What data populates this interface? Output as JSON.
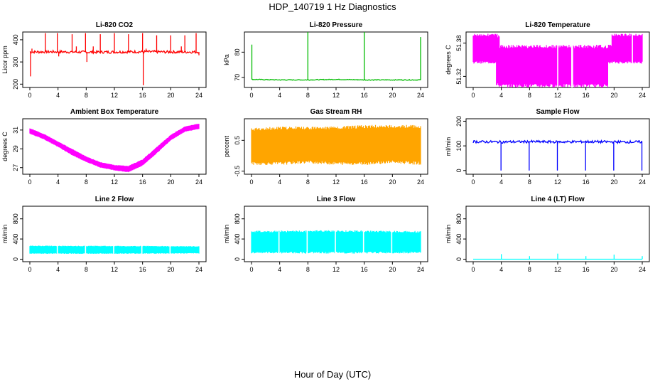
{
  "figure": {
    "title": "HDP_140719  1 Hz Diagnostics",
    "xlabel": "Hour of Day (UTC)"
  },
  "chart_data": [
    {
      "type": "line",
      "title": "Li-820 CO2",
      "ylabel": "Licor ppm",
      "color": "#ff0000",
      "xlim": [
        0,
        24
      ],
      "ylim": [
        185,
        435
      ],
      "xticks": [
        "0",
        "4",
        "8",
        "12",
        "16",
        "20",
        "24"
      ],
      "yticks": [
        200,
        300,
        400
      ],
      "baseline": [
        [
          0,
          345
        ],
        [
          4,
          346
        ],
        [
          8,
          344
        ],
        [
          12,
          345
        ],
        [
          16,
          346
        ],
        [
          20,
          345
        ],
        [
          24,
          345
        ]
      ],
      "noise": 6,
      "spikes": [
        [
          0.1,
          235
        ],
        [
          0.3,
          360
        ],
        [
          2.2,
          430
        ],
        [
          3.9,
          430
        ],
        [
          4.1,
          325
        ],
        [
          6.0,
          425
        ],
        [
          6.6,
          370
        ],
        [
          7.9,
          430
        ],
        [
          8.1,
          300
        ],
        [
          9.0,
          370
        ],
        [
          10.0,
          425
        ],
        [
          12.0,
          430
        ],
        [
          14.0,
          425
        ],
        [
          16.0,
          430
        ],
        [
          16.1,
          195
        ],
        [
          16.5,
          360
        ],
        [
          18.0,
          420
        ],
        [
          20.0,
          420
        ],
        [
          21.5,
          370
        ],
        [
          22.0,
          420
        ],
        [
          23.6,
          430
        ],
        [
          24.0,
          330
        ]
      ]
    },
    {
      "type": "line",
      "title": "Li-820 Pressure",
      "ylabel": "kPa",
      "color": "#00bb00",
      "xlim": [
        0,
        24
      ],
      "ylim": [
        66,
        88
      ],
      "xticks": [
        "0",
        "4",
        "8",
        "12",
        "16",
        "20",
        "24"
      ],
      "yticks": [
        70,
        80
      ],
      "baseline": [
        [
          0,
          69.2
        ],
        [
          4,
          69.0
        ],
        [
          8,
          69.0
        ],
        [
          12,
          69.2
        ],
        [
          16,
          69.0
        ],
        [
          20,
          69.0
        ],
        [
          24,
          69.0
        ]
      ],
      "noise": 0.15,
      "spikes": [
        [
          0.05,
          83
        ],
        [
          8.0,
          88
        ],
        [
          16.0,
          88
        ],
        [
          24.0,
          86
        ]
      ]
    },
    {
      "type": "band",
      "title": "Li-820 Temperature",
      "ylabel": "degrees C",
      "color": "#ff00ff",
      "xlim": [
        0,
        24
      ],
      "ylim": [
        51.3,
        51.4
      ],
      "xticks": [
        "0",
        "4",
        "8",
        "12",
        "16",
        "20",
        "24"
      ],
      "yticks": [
        51.32,
        51.38
      ],
      "upper": [
        [
          0,
          51.397
        ],
        [
          3.7,
          51.397
        ],
        [
          3.8,
          51.377
        ],
        [
          19.6,
          51.377
        ],
        [
          19.7,
          51.397
        ],
        [
          24,
          51.397
        ]
      ],
      "lower": [
        [
          0,
          51.343
        ],
        [
          3.2,
          51.343
        ],
        [
          3.3,
          51.3
        ],
        [
          19.1,
          51.3
        ],
        [
          19.2,
          51.343
        ],
        [
          24,
          51.343
        ]
      ],
      "gaps": [
        12.0,
        14.0,
        14.1,
        22.6
      ]
    },
    {
      "type": "band",
      "title": "Ambient Box Temperature",
      "ylabel": "degrees C",
      "color": "#ff00ff",
      "xlim": [
        0,
        24
      ],
      "ylim": [
        26.3,
        32.2
      ],
      "xticks": [
        "0",
        "4",
        "8",
        "12",
        "16",
        "20",
        "24"
      ],
      "yticks": [
        27,
        29,
        31
      ],
      "upper": [
        [
          0,
          31.2
        ],
        [
          2,
          30.6
        ],
        [
          4,
          29.8
        ],
        [
          6,
          29.0
        ],
        [
          8,
          28.2
        ],
        [
          10,
          27.6
        ],
        [
          12,
          27.3
        ],
        [
          14,
          27.2
        ],
        [
          16,
          27.9
        ],
        [
          18,
          29.2
        ],
        [
          20,
          30.5
        ],
        [
          22,
          31.4
        ],
        [
          24,
          31.7
        ]
      ],
      "lower": [
        [
          0,
          30.6
        ],
        [
          2,
          30.0
        ],
        [
          4,
          29.2
        ],
        [
          6,
          28.3
        ],
        [
          8,
          27.6
        ],
        [
          10,
          27.0
        ],
        [
          12,
          26.7
        ],
        [
          14,
          26.5
        ],
        [
          16,
          27.2
        ],
        [
          18,
          28.5
        ],
        [
          20,
          29.9
        ],
        [
          22,
          30.8
        ],
        [
          24,
          31.1
        ]
      ],
      "gaps": []
    },
    {
      "type": "band",
      "title": "Gas Stream RH",
      "ylabel": "percent",
      "color": "#ffa500",
      "xlim": [
        0,
        24
      ],
      "ylim": [
        -0.6,
        1.2
      ],
      "xticks": [
        "0",
        "4",
        "8",
        "12",
        "16",
        "20",
        "24"
      ],
      "yticks": [
        -0.5,
        0.5
      ],
      "upper": [
        [
          0,
          0.9
        ],
        [
          4,
          0.95
        ],
        [
          8,
          0.95
        ],
        [
          12,
          0.95
        ],
        [
          16,
          1.0
        ],
        [
          20,
          1.0
        ],
        [
          24,
          1.0
        ]
      ],
      "lower": [
        [
          0,
          -0.3
        ],
        [
          4,
          -0.3
        ],
        [
          8,
          -0.25
        ],
        [
          12,
          -0.3
        ],
        [
          16,
          -0.3
        ],
        [
          20,
          -0.25
        ],
        [
          24,
          -0.3
        ]
      ],
      "gaps": []
    },
    {
      "type": "line",
      "title": "Sample Flow",
      "ylabel": "ml/min",
      "color": "#0000ff",
      "xlim": [
        0,
        24
      ],
      "ylim": [
        -15,
        210
      ],
      "xticks": [
        "0",
        "4",
        "8",
        "12",
        "16",
        "20",
        "24"
      ],
      "yticks": [
        0,
        100,
        200
      ],
      "baseline": [
        [
          0,
          117
        ],
        [
          4,
          116
        ],
        [
          8,
          117
        ],
        [
          12,
          116
        ],
        [
          16,
          117
        ],
        [
          20,
          116
        ],
        [
          24,
          116
        ]
      ],
      "noise": 5,
      "spikes": [
        [
          3.95,
          0
        ],
        [
          7.95,
          0
        ],
        [
          11.95,
          0
        ],
        [
          15.95,
          0
        ],
        [
          19.95,
          0
        ],
        [
          23.95,
          0
        ]
      ]
    },
    {
      "type": "band",
      "title": "Line 2 Flow",
      "ylabel": "ml/min",
      "color": "#00ffff",
      "xlim": [
        0,
        24
      ],
      "ylim": [
        -50,
        1050
      ],
      "xticks": [
        "0",
        "4",
        "8",
        "12",
        "16",
        "20",
        "24"
      ],
      "yticks": [
        0,
        400,
        800
      ],
      "upper": [
        [
          0,
          270
        ],
        [
          12,
          265
        ],
        [
          24,
          260
        ]
      ],
      "lower": [
        [
          0,
          105
        ],
        [
          12,
          105
        ],
        [
          24,
          110
        ]
      ],
      "gaps": [
        3.9,
        7.9,
        11.9,
        15.9,
        19.9
      ]
    },
    {
      "type": "band",
      "title": "Line 3 Flow",
      "ylabel": "ml/min",
      "color": "#00ffff",
      "xlim": [
        0,
        24
      ],
      "ylim": [
        -50,
        1050
      ],
      "xticks": [
        "0",
        "4",
        "8",
        "12",
        "16",
        "20",
        "24"
      ],
      "yticks": [
        0,
        400,
        800
      ],
      "upper": [
        [
          0,
          565
        ],
        [
          12,
          575
        ],
        [
          24,
          560
        ]
      ],
      "lower": [
        [
          0,
          115
        ],
        [
          12,
          110
        ],
        [
          24,
          115
        ]
      ],
      "gaps": [
        3.9,
        7.9,
        11.9,
        15.9,
        19.9
      ]
    },
    {
      "type": "line",
      "title": "Line 4 (LT) Flow",
      "ylabel": "ml/min",
      "color": "#00ffff",
      "xlim": [
        0,
        24
      ],
      "ylim": [
        -50,
        1050
      ],
      "xticks": [
        "0",
        "4",
        "8",
        "12",
        "16",
        "20",
        "24"
      ],
      "yticks": [
        0,
        400,
        800
      ],
      "baseline": [
        [
          0,
          0
        ],
        [
          24,
          0
        ]
      ],
      "noise": 0,
      "spikes": [
        [
          4.0,
          100
        ],
        [
          8.0,
          60
        ],
        [
          12.0,
          110
        ],
        [
          16.0,
          60
        ],
        [
          20.0,
          90
        ],
        [
          24.0,
          60
        ]
      ]
    }
  ]
}
